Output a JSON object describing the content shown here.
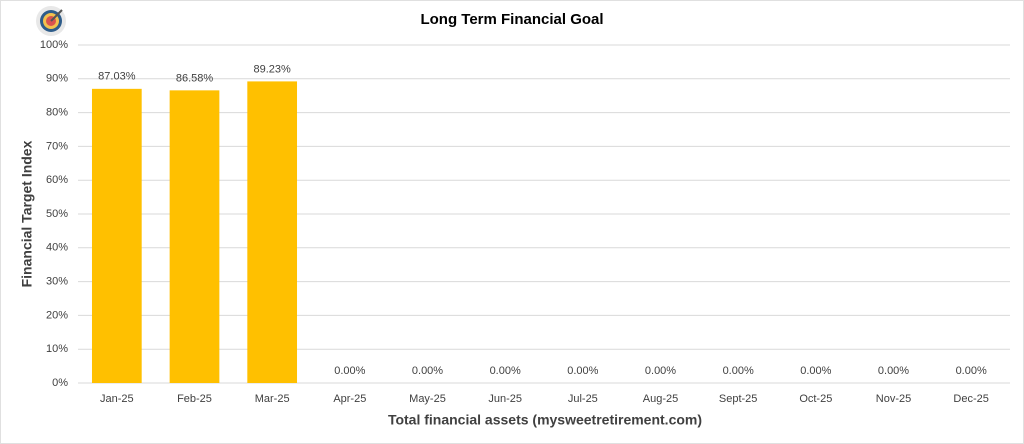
{
  "chart_data": {
    "type": "bar",
    "title": "Long Term Financial Goal",
    "x_label": "Total financial assets (mysweetretirement.com)",
    "y_label": "Financial Target Index",
    "categories": [
      "Jan-25",
      "Feb-25",
      "Mar-25",
      "Apr-25",
      "May-25",
      "Jun-25",
      "Jul-25",
      "Aug-25",
      "Sept-25",
      "Oct-25",
      "Nov-25",
      "Dec-25"
    ],
    "values": [
      87.03,
      86.58,
      89.23,
      0,
      0,
      0,
      0,
      0,
      0,
      0,
      0,
      0
    ],
    "value_labels": [
      "87.03%",
      "86.58%",
      "89.23%",
      "0.00%",
      "0.00%",
      "0.00%",
      "0.00%",
      "0.00%",
      "0.00%",
      "0.00%",
      "0.00%",
      "0.00%"
    ],
    "color": "#ffc000",
    "ylim": [
      0,
      100
    ],
    "yticks": [
      {
        "value": 0,
        "label": "0%"
      },
      {
        "value": 10,
        "label": "10%"
      },
      {
        "value": 20,
        "label": "20%"
      },
      {
        "value": 30,
        "label": "30%"
      },
      {
        "value": 40,
        "label": "40%"
      },
      {
        "value": 50,
        "label": "50%"
      },
      {
        "value": 60,
        "label": "60%"
      },
      {
        "value": 70,
        "label": "70%"
      },
      {
        "value": 80,
        "label": "80%"
      },
      {
        "value": 90,
        "label": "90%"
      },
      {
        "value": 100,
        "label": "100%"
      }
    ],
    "grid": true
  }
}
